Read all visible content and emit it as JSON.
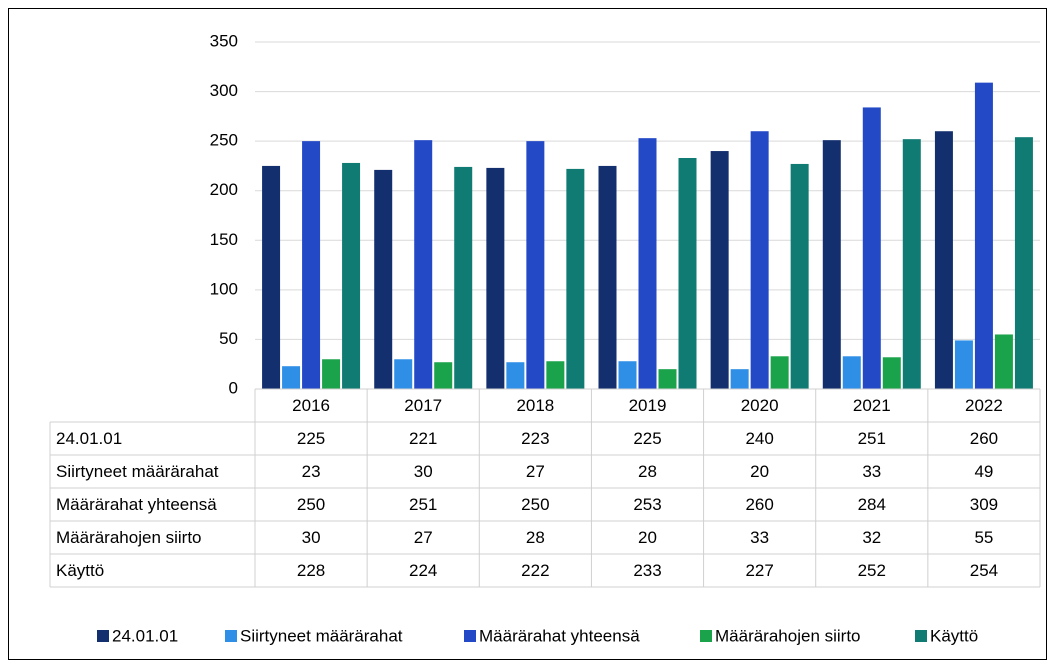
{
  "chart_data": {
    "type": "bar",
    "categories": [
      "2016",
      "2017",
      "2018",
      "2019",
      "2020",
      "2021",
      "2022"
    ],
    "series": [
      {
        "name": "24.01.01",
        "color": "#132f6e",
        "values": [
          225,
          221,
          223,
          225,
          240,
          251,
          260
        ]
      },
      {
        "name": "Siirtyneet määrärahat",
        "color": "#2f8fe6",
        "values": [
          23,
          30,
          27,
          28,
          20,
          33,
          49
        ]
      },
      {
        "name": "Määrärahat yhteensä",
        "color": "#2449c6",
        "values": [
          250,
          251,
          250,
          253,
          260,
          284,
          309
        ]
      },
      {
        "name": "Määrärahojen siirto",
        "color": "#1ba34b",
        "values": [
          30,
          27,
          28,
          20,
          33,
          32,
          55
        ]
      },
      {
        "name": "Käyttö",
        "color": "#0f7b73",
        "values": [
          228,
          224,
          222,
          233,
          227,
          252,
          254
        ]
      }
    ],
    "ylim": [
      0,
      350
    ],
    "yticks": [
      0,
      50,
      100,
      150,
      200,
      250,
      300,
      350
    ],
    "grid": true,
    "legend": "bottom"
  }
}
